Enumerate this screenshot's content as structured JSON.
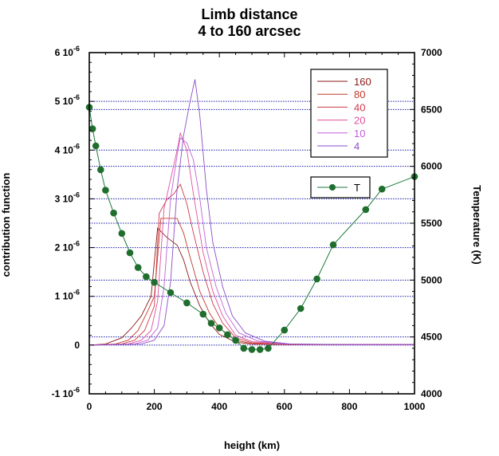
{
  "chart_data": {
    "type": "line",
    "title": "Limb distance",
    "subtitle": "4 to 160 arcsec",
    "xlabel": "height (km)",
    "ylabel_left": "contribution function",
    "ylabel_right": "Temperature (K)",
    "xlim": [
      0,
      1000
    ],
    "ylim_left": [
      -1e-06,
      6e-06
    ],
    "ylim_right": [
      4000,
      7000
    ],
    "x_ticks": [
      "0",
      "200",
      "400",
      "600",
      "800",
      "1000"
    ],
    "y_left_ticks": [
      {
        "mant": "-1 10",
        "exp": "-6"
      },
      {
        "mant": "0",
        "exp": ""
      },
      {
        "mant": "1 10",
        "exp": "-6"
      },
      {
        "mant": "2 10",
        "exp": "-6"
      },
      {
        "mant": "3 10",
        "exp": "-6"
      },
      {
        "mant": "4 10",
        "exp": "-6"
      },
      {
        "mant": "5 10",
        "exp": "-6"
      },
      {
        "mant": "6 10",
        "exp": "-6"
      }
    ],
    "y_right_ticks": [
      "4000",
      "4500",
      "5000",
      "5500",
      "6000",
      "6500",
      "7000"
    ],
    "colors": {
      "grid": "#1a1aa8",
      "temperature": "#1e7a3c",
      "marker": "#1f6e2e"
    },
    "series": [
      {
        "name": "160",
        "color": "#8b1a1a",
        "x": [
          0,
          50,
          100,
          130,
          160,
          190,
          210,
          240,
          270,
          290,
          310,
          340,
          370,
          400,
          450,
          500,
          600,
          800,
          1000
        ],
        "y": [
          0,
          2e-08,
          1.5e-07,
          3.5e-07,
          6e-07,
          1e-06,
          2.4e-06,
          2.2e-06,
          2.05e-06,
          1.75e-06,
          1.3e-06,
          8e-07,
          4.5e-07,
          2.2e-07,
          6e-08,
          2e-08,
          1e-08,
          1e-08,
          1e-08
        ]
      },
      {
        "name": "80",
        "color": "#c43a2a",
        "x": [
          0,
          80,
          120,
          150,
          180,
          200,
          220,
          240,
          270,
          290,
          310,
          340,
          370,
          400,
          450,
          500,
          600,
          800,
          1000
        ],
        "y": [
          0,
          2e-08,
          1e-07,
          3e-07,
          7e-07,
          1e-06,
          2.6e-06,
          2.6e-06,
          2.6e-06,
          2.3e-06,
          1.8e-06,
          1.1e-06,
          6.5e-07,
          3.5e-07,
          1e-07,
          3e-08,
          1e-08,
          1e-08,
          1e-08
        ]
      },
      {
        "name": "40",
        "color": "#d0384a",
        "x": [
          0,
          100,
          140,
          170,
          200,
          215,
          240,
          260,
          280,
          300,
          320,
          350,
          380,
          410,
          450,
          500,
          600,
          800,
          1000
        ],
        "y": [
          0,
          2e-08,
          1e-07,
          3e-07,
          8e-07,
          2.7e-06,
          3e-06,
          3.1e-06,
          3.3e-06,
          2.9e-06,
          2.3e-06,
          1.5e-06,
          8.5e-07,
          4.5e-07,
          1.5e-07,
          5e-08,
          1e-08,
          1e-08,
          1e-08
        ]
      },
      {
        "name": "20",
        "color": "#e0509a",
        "x": [
          0,
          120,
          160,
          190,
          210,
          230,
          250,
          270,
          280,
          300,
          320,
          350,
          380,
          410,
          450,
          500,
          600,
          800,
          1000
        ],
        "y": [
          0,
          2e-08,
          1e-07,
          3e-07,
          9e-07,
          2.8e-06,
          3.4e-06,
          4e-06,
          4.35e-06,
          4e-06,
          3.1e-06,
          1.9e-06,
          1.1e-06,
          6e-07,
          2e-07,
          7e-08,
          2e-08,
          1e-08,
          1e-08
        ]
      },
      {
        "name": "10",
        "color": "#c060d8",
        "x": [
          0,
          140,
          180,
          210,
          230,
          250,
          270,
          280,
          300,
          320,
          340,
          360,
          390,
          420,
          460,
          520,
          600,
          800,
          1000
        ],
        "y": [
          0,
          2e-08,
          1e-07,
          3.5e-07,
          1.2e-06,
          3e-06,
          3.9e-06,
          4.25e-06,
          4.15e-06,
          3.8e-06,
          3e-06,
          2e-06,
          1.2e-06,
          6.5e-07,
          2.5e-07,
          8e-08,
          2e-08,
          1e-08,
          1e-08
        ]
      },
      {
        "name": "4",
        "color": "#8a4ec8",
        "x": [
          0,
          160,
          200,
          230,
          250,
          270,
          290,
          310,
          325,
          340,
          360,
          380,
          410,
          440,
          480,
          540,
          620,
          800,
          1000
        ],
        "y": [
          0,
          2e-08,
          1e-07,
          4e-07,
          1.3e-06,
          3.2e-06,
          4.3e-06,
          5e-06,
          5.45e-06,
          4.7e-06,
          3.2e-06,
          2.1e-06,
          1.2e-06,
          6e-07,
          2.5e-07,
          8e-08,
          2e-08,
          1e-08,
          1e-08
        ]
      }
    ],
    "temperature": {
      "name": "T",
      "x": [
        0,
        10,
        20,
        35,
        50,
        75,
        100,
        125,
        150,
        175,
        200,
        250,
        300,
        350,
        375,
        400,
        425,
        450,
        475,
        500,
        525,
        550,
        600,
        650,
        700,
        750,
        850,
        900,
        1000
      ],
      "y": [
        6520,
        6330,
        6180,
        5970,
        5790,
        5590,
        5410,
        5240,
        5110,
        5030,
        4980,
        4890,
        4800,
        4700,
        4620,
        4580,
        4520,
        4470,
        4400,
        4390,
        4390,
        4400,
        4560,
        4750,
        5010,
        5310,
        5620,
        5800,
        5910
      ]
    }
  }
}
